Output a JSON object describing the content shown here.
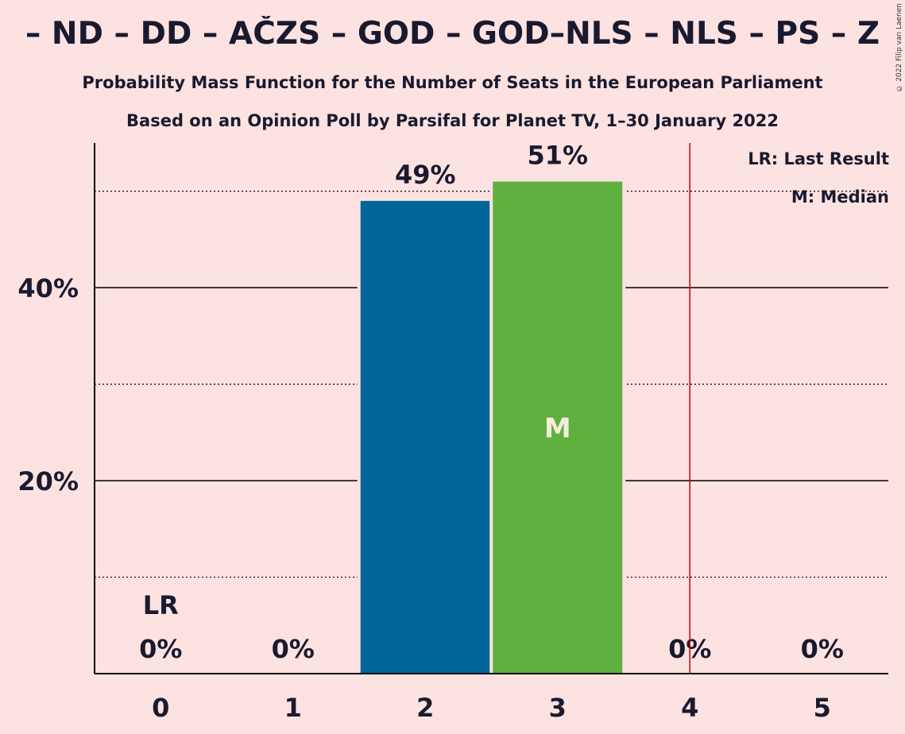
{
  "title": "– ND – DD – AČZS – GOD – GOD–NLS – NLS – PS – Z",
  "subtitle_1": "Probability Mass Function for the Number of Seats in the European Parliament",
  "subtitle_2": "Based on an Opinion Poll by Parsifal for Planet TV, 1–30 January 2022",
  "copyright": "© 2022 Filip van Laenen",
  "legend": {
    "last_result": "LR: Last Result",
    "median": "M: Median"
  },
  "colors": {
    "background": "#FDE2E2",
    "bar_primary": "#006699",
    "bar_median": "#60B040",
    "last_result_line": "#CC0000",
    "text": "#1a1a2e"
  },
  "chart_data": {
    "type": "bar",
    "categories": [
      "0",
      "1",
      "2",
      "3",
      "4",
      "5"
    ],
    "values": [
      0,
      0,
      49,
      51,
      0,
      0
    ],
    "value_labels": [
      "0%",
      "0%",
      "49%",
      "51%",
      "0%",
      "0%"
    ],
    "bar_colors": [
      "#006699",
      "#006699",
      "#006699",
      "#60B040",
      "#006699",
      "#006699"
    ],
    "ylim": [
      0,
      55
    ],
    "yticks": [
      20,
      40
    ],
    "ytick_labels": [
      "20%",
      "40%"
    ],
    "minor_gridlines": [
      10,
      30,
      50
    ],
    "median_seat": "3",
    "median_marker": "M",
    "last_result_seat": "0",
    "last_result_marker": "LR",
    "last_result_line_x": 4.5,
    "grid": true,
    "legend_position": "top-right"
  }
}
